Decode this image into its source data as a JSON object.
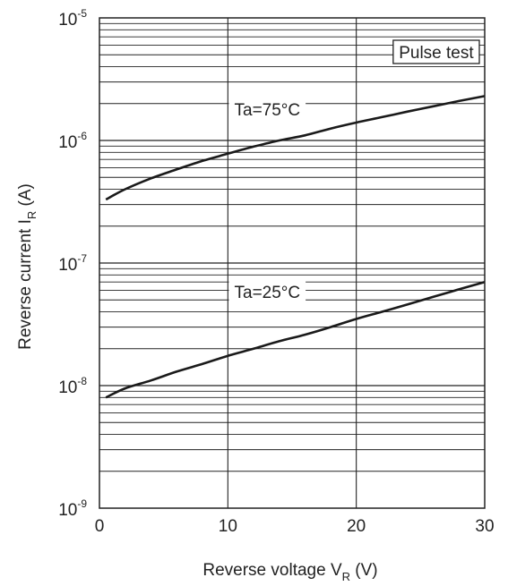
{
  "chart_data": {
    "type": "line",
    "x_axis": {
      "label_main": "Reverse voltage  V",
      "label_sub": "R",
      "label_unit": "  (V)",
      "range": [
        0,
        30
      ],
      "ticks": [
        0,
        10,
        20,
        30
      ],
      "tick_labels": [
        "0",
        "10",
        "20",
        "30"
      ]
    },
    "y_axis": {
      "label_main": "Reverse current  I",
      "label_sub": "R",
      "label_unit": "  (A)",
      "scale": "log",
      "range": [
        1e-09,
        1e-05
      ],
      "ticks": [
        {
          "base": "10",
          "exp": "-9"
        },
        {
          "base": "10",
          "exp": "-8"
        },
        {
          "base": "10",
          "exp": "-7"
        },
        {
          "base": "10",
          "exp": "-6"
        },
        {
          "base": "10",
          "exp": "-5"
        }
      ]
    },
    "grid": true,
    "annotation_box": "Pulse test",
    "series": [
      {
        "name": "Ta=75°C",
        "x": [
          0.5,
          2,
          4,
          6,
          8,
          10,
          12,
          14,
          16,
          18,
          20,
          22,
          24,
          26,
          28,
          30
        ],
        "y": [
          3.3e-07,
          4e-07,
          4.9e-07,
          5.8e-07,
          6.8e-07,
          7.8e-07,
          8.9e-07,
          1e-06,
          1.1e-06,
          1.25e-06,
          1.4e-06,
          1.55e-06,
          1.72e-06,
          1.9e-06,
          2.1e-06,
          2.3e-06
        ]
      },
      {
        "name": "Ta=25°C",
        "x": [
          0.5,
          2,
          4,
          6,
          8,
          10,
          12,
          14,
          16,
          18,
          20,
          22,
          24,
          26,
          28,
          30
        ],
        "y": [
          8e-09,
          9.5e-09,
          1.1e-08,
          1.3e-08,
          1.5e-08,
          1.75e-08,
          2e-08,
          2.3e-08,
          2.6e-08,
          3e-08,
          3.5e-08,
          4e-08,
          4.6e-08,
          5.3e-08,
          6.1e-08,
          7e-08
        ]
      }
    ]
  }
}
